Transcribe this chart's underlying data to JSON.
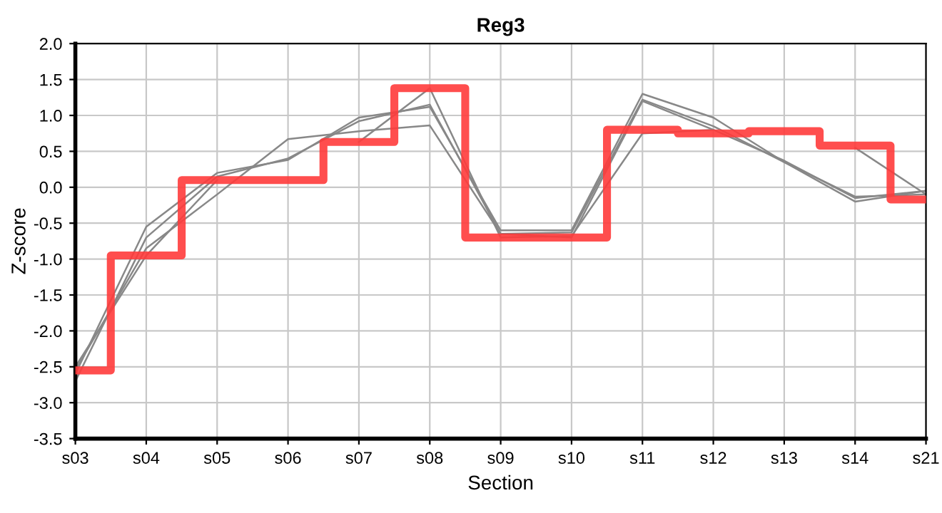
{
  "chart_data": {
    "type": "line",
    "title": "Reg3",
    "xlabel": "Section",
    "ylabel": "Z-score",
    "categories": [
      "s03",
      "s04",
      "s05",
      "s06",
      "s07",
      "s08",
      "s09",
      "s10",
      "s11",
      "s12",
      "s13",
      "s14",
      "s21"
    ],
    "series": [
      {
        "color": "#888888",
        "values": [
          -2.6,
          -0.55,
          0.2,
          0.38,
          0.97,
          1.12,
          -0.6,
          -0.6,
          1.3,
          0.97,
          0.35,
          -0.2,
          -0.05
        ]
      },
      {
        "color": "#888888",
        "values": [
          -2.7,
          -0.7,
          0.15,
          0.4,
          0.92,
          1.15,
          -0.65,
          -0.63,
          1.22,
          0.85,
          0.35,
          -0.13,
          -0.1
        ]
      },
      {
        "color": "#888888",
        "values": [
          -2.55,
          -0.85,
          -0.1,
          0.67,
          0.78,
          0.86,
          -0.65,
          -0.7,
          1.2,
          0.8,
          0.37,
          -0.15,
          -0.05
        ]
      },
      {
        "color": "#888888",
        "values": [
          -2.5,
          -0.95,
          0.1,
          null,
          0.63,
          1.38,
          -0.7,
          -0.68,
          0.75,
          0.8,
          null,
          0.55,
          -0.1
        ]
      },
      {
        "type": "step",
        "color": "#ff3b3b",
        "values": [
          -2.55,
          -0.95,
          0.1,
          0.1,
          0.63,
          1.38,
          -0.7,
          -0.7,
          0.8,
          0.75,
          0.78,
          0.58,
          -0.17
        ]
      }
    ],
    "ylim": [
      -3.5,
      2.0
    ],
    "yticks": [
      {
        "value": -3.5,
        "label": "-3.5"
      },
      {
        "value": -3,
        "label": "-3.0"
      },
      {
        "value": -2.5,
        "label": "-2.5"
      },
      {
        "value": -2,
        "label": "-2.0"
      },
      {
        "value": -1.5,
        "label": "-1.5"
      },
      {
        "value": -1,
        "label": "-1.0"
      },
      {
        "value": -0.5,
        "label": "-0.5"
      },
      {
        "value": 0,
        "label": "0.0"
      },
      {
        "value": 0.5,
        "label": "0.5"
      },
      {
        "value": 1,
        "label": "1.0"
      },
      {
        "value": 1.5,
        "label": "1.5"
      },
      {
        "value": 2,
        "label": "2.0"
      }
    ],
    "grid": true,
    "marker": "none",
    "line_style": "solid"
  }
}
